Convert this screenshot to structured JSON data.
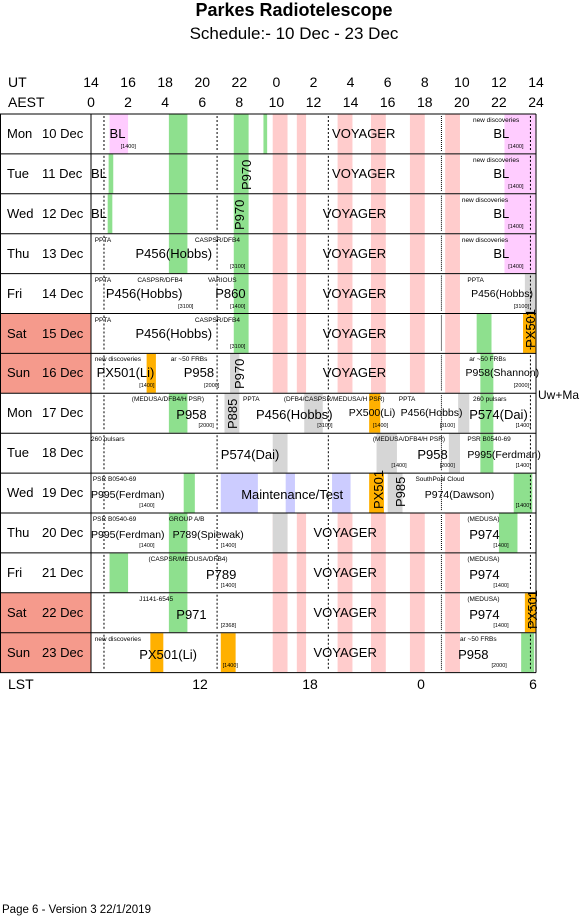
{
  "title": "Parkes Radiotelescope",
  "subtitle": "Schedule:- 10 Dec - 23 Dec",
  "axis": {
    "ut_label": "UT",
    "aest_label": "AEST",
    "lst_label": "LST",
    "ut_ticks": [
      "14",
      "16",
      "18",
      "20",
      "22",
      "0",
      "2",
      "4",
      "6",
      "8",
      "10",
      "12",
      "14"
    ],
    "aest_ticks": [
      "0",
      "2",
      "4",
      "6",
      "8",
      "10",
      "12",
      "14",
      "16",
      "18",
      "20",
      "22",
      "24"
    ],
    "lst_ticks": [
      "12",
      "18",
      "0",
      "6"
    ]
  },
  "colors": {
    "green": "#8ee08e",
    "pink": "#ffcccc",
    "grey": "#d6d6d6",
    "orange": "#ffb000",
    "magenta": "#ffccff",
    "lavender": "#ccccff",
    "weekend": "#f59a8c"
  },
  "days": [
    {
      "day": "Mon",
      "date": "10 Dec",
      "weekend": false
    },
    {
      "day": "Tue",
      "date": "11 Dec",
      "weekend": false
    },
    {
      "day": "Wed",
      "date": "12 Dec",
      "weekend": false
    },
    {
      "day": "Thu",
      "date": "13 Dec",
      "weekend": false
    },
    {
      "day": "Fri",
      "date": "14 Dec",
      "weekend": false
    },
    {
      "day": "Sat",
      "date": "15 Dec",
      "weekend": true
    },
    {
      "day": "Sun",
      "date": "16 Dec",
      "weekend": true
    },
    {
      "day": "Mon",
      "date": "17 Dec",
      "weekend": false
    },
    {
      "day": "Tue",
      "date": "18 Dec",
      "weekend": false
    },
    {
      "day": "Wed",
      "date": "19 Dec",
      "weekend": false
    },
    {
      "day": "Thu",
      "date": "20 Dec",
      "weekend": false
    },
    {
      "day": "Fri",
      "date": "21 Dec",
      "weekend": false
    },
    {
      "day": "Sat",
      "date": "22 Dec",
      "weekend": true
    },
    {
      "day": "Sun",
      "date": "23 Dec",
      "weekend": true
    }
  ],
  "side_note": "Uw+Ma",
  "labels": {
    "r0": {
      "bl1": "BL",
      "n1400a": "[1400]",
      "voyager": "VOYAGER",
      "newdisc": "new discoveries",
      "bl2": "BL",
      "n1400b": "[1400]"
    },
    "r1": {
      "bl1": "BL",
      "p970": "P970",
      "voyager": "VOYAGER",
      "newdisc": "new discoveries",
      "bl2": "BL",
      "n1400b": "[1400]"
    },
    "r2": {
      "bl1": "BL",
      "p970": "P970",
      "voyager": "VOYAGER",
      "newdisc": "new discoveries",
      "bl2": "BL",
      "n1400b": "[1400]"
    },
    "r3": {
      "ppta": "PPTA",
      "casper": "CASPSR/DFB4",
      "p456": "P456(Hobbs)",
      "n3100": "[3100]",
      "voyager": "VOYAGER",
      "newdisc": "new discoveries",
      "bl2": "BL",
      "n1400b": "[1400]"
    },
    "r4": {
      "ppta": "PPTA",
      "casper": "CASPSR/DFB4",
      "various": "VARIOUS",
      "p456": "P456(Hobbs)",
      "n3100": "[3100]",
      "p860": "P860",
      "n1400": "[1400]",
      "voyager": "VOYAGER",
      "ppta2": "PPTA",
      "p456b": "P456(Hobbs)",
      "n3100b": "[3100]"
    },
    "r5": {
      "ppta": "PPTA",
      "casper": "CASPSR/DFB4",
      "p456": "P456(Hobbs)",
      "n3100": "[3100]",
      "voyager": "VOYAGER",
      "px501": "PX501"
    },
    "r6": {
      "newdisc": "new discoveries",
      "frbs": "ar ~50 FRBs",
      "px501": "PX501(Li)",
      "n1400": "[1400]",
      "p958": "P958",
      "n2000": "[2000]",
      "p970": "P970",
      "voyager": "VOYAGER",
      "frbs2": "ar ~50 FRBs",
      "p958b": "P958(Shannon)",
      "n2000b": "[2000]"
    },
    "r7": {
      "medusa": "(MEDUSA/DFB4/H PSR)",
      "p958": "P958",
      "n2000": "[2000]",
      "p885": "P885",
      "ppta": "PPTA",
      "dfb": "(DFB4/CASPSR/MEDUSA/H PSR)",
      "p456": "P456(Hobbs)",
      "n3100": "[3100]",
      "px500": "PX500(Li)",
      "n1400": "[1400]",
      "ppta2": "PPTA",
      "p456b": "P456(Hobbs)",
      "n3100b": "[3100]",
      "pulsars": "260 pulsars",
      "p574": "P574(Dai)",
      "n1400b": "[1400]"
    },
    "r8": {
      "pulsars": "260 pulsars",
      "p574": "P574(Dai)",
      "medusa": "(MEDUSA/DFB4/H PSR)",
      "n1400": "[1400]",
      "p958": "P958",
      "n2000": "[2000]",
      "psr": "PSR B0540-69",
      "p995": "P995(Ferdman)",
      "n1400b": "[1400]"
    },
    "r9": {
      "psr": "PSR B0540-69",
      "p995": "P995(Ferdman)",
      "n1400": "[1400]",
      "maint": "Maintenance/Test",
      "px501": "PX501",
      "p985": "P985",
      "southpole": "SouthPoal Cloud",
      "p974": "P974(Dawson)",
      "n1400b": "[1400]"
    },
    "r10": {
      "psr": "PSR B0540-69",
      "p995": "P995(Ferdman)",
      "n1400": "[1400]",
      "groupab": "GROUP A/B",
      "p789": "P789(Spiewak)",
      "n1400b": "[1400]",
      "voyager": "VOYAGER",
      "medusa": "(MEDUSA)",
      "p974": "P974",
      "n1400c": "[1400]"
    },
    "r11": {
      "casper": "(CASPSR/MEDUSA/DFB4)",
      "p789": "P789",
      "n1400": "[1400]",
      "voyager": "VOYAGER",
      "medusa": "(MEDUSA)",
      "p974": "P974",
      "n1400b": "[1400]"
    },
    "r12": {
      "j1141": "J1141-6545",
      "p971": "P971",
      "n2368": "[2368]",
      "voyager": "VOYAGER",
      "medusa": "(MEDUSA)",
      "p974": "P974",
      "n1400": "[1400]",
      "px501": "PX501"
    },
    "r13": {
      "newdisc": "new discoveries",
      "px501": "PX501(Li)",
      "n1400": "[1400]",
      "voyager": "VOYAGER",
      "frbs": "ar ~50 FRBs",
      "p958": "P958",
      "n2000": "[2000]"
    }
  },
  "footer": "Page 6 - Version 3  22/1/2019"
}
